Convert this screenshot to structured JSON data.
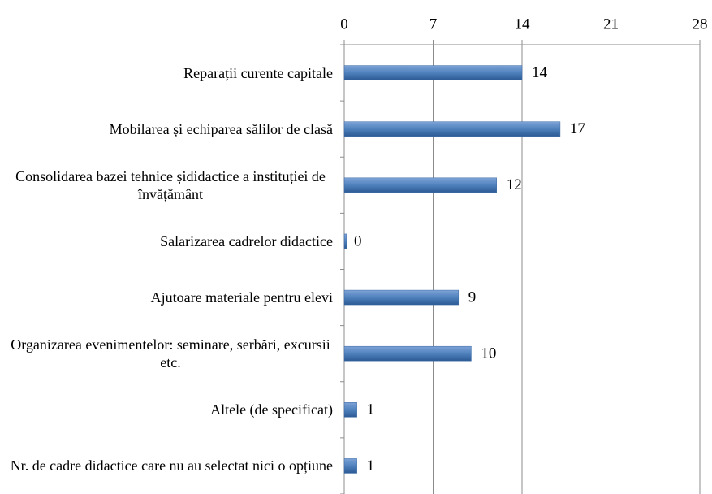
{
  "chart_data": {
    "type": "bar",
    "orientation": "horizontal",
    "categories": [
      "Reparații curente capitale",
      "Mobilarea și echiparea sălilor de clasă",
      "Consolidarea bazei tehnice șididactice a instituției de învățământ",
      "Salarizarea cadrelor didactice",
      "Ajutoare materiale pentru elevi",
      "Organizarea evenimentelor: seminare, serbări, excursii etc.",
      "Altele (de specificat)",
      "Nr. de cadre didactice care nu au selectat nici o opțiune"
    ],
    "values": [
      14,
      17,
      12,
      0,
      9,
      10,
      1,
      1
    ],
    "color": "#4f81bd",
    "xlim": [
      0,
      28
    ],
    "xticks": [
      0,
      7,
      14,
      21,
      28
    ],
    "grid": true
  }
}
